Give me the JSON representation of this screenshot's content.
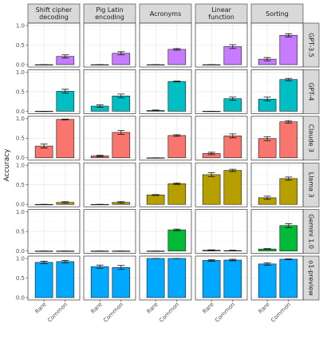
{
  "chart_data": {
    "type": "bar",
    "layout": "facet-grid",
    "ylabel": "Accuracy",
    "ylim": [
      0,
      1
    ],
    "yticks": [
      "0.0",
      "0.5",
      "1.0"
    ],
    "categories": [
      "Rare",
      "Common"
    ],
    "tasks": [
      "Shift cipher\ndecoding",
      "Pig Latin\nencoding",
      "Acronyms",
      "Linear\nfunction",
      "Sorting"
    ],
    "models": [
      {
        "name": "GPT-3.5",
        "color": "#c77cff"
      },
      {
        "name": "GPT-4",
        "color": "#00bfc4"
      },
      {
        "name": "Claude 3",
        "color": "#f8766d"
      },
      {
        "name": "Llama 3",
        "color": "#b79f00"
      },
      {
        "name": "Gemini 1.0",
        "color": "#00ba38"
      },
      {
        "name": "o1-preview",
        "color": "#00a9ff"
      }
    ],
    "values": [
      [
        [
          0.0,
          0.21
        ],
        [
          0.0,
          0.29
        ],
        [
          0.0,
          0.39
        ],
        [
          0.0,
          0.46
        ],
        [
          0.14,
          0.75
        ]
      ],
      [
        [
          0.0,
          0.51
        ],
        [
          0.13,
          0.39
        ],
        [
          0.02,
          0.76
        ],
        [
          0.0,
          0.32
        ],
        [
          0.31,
          0.81
        ]
      ],
      [
        [
          0.3,
          0.98
        ],
        [
          0.05,
          0.65
        ],
        [
          0.0,
          0.57
        ],
        [
          0.11,
          0.56
        ],
        [
          0.49,
          0.92
        ]
      ],
      [
        [
          0.0,
          0.05
        ],
        [
          0.0,
          0.05
        ],
        [
          0.24,
          0.53
        ],
        [
          0.76,
          0.87
        ],
        [
          0.17,
          0.66
        ]
      ],
      [
        [
          0.0,
          0.0
        ],
        [
          0.0,
          0.0
        ],
        [
          0.0,
          0.54
        ],
        [
          0.02,
          0.01
        ],
        [
          0.05,
          0.65
        ]
      ],
      [
        [
          0.9,
          0.92
        ],
        [
          0.79,
          0.77
        ],
        [
          1.0,
          1.0
        ],
        [
          0.95,
          0.96
        ],
        [
          0.86,
          0.98
        ]
      ]
    ],
    "errors": [
      [
        [
          0.0,
          0.04
        ],
        [
          0.0,
          0.04
        ],
        [
          0.0,
          0.02
        ],
        [
          0.0,
          0.05
        ],
        [
          0.04,
          0.04
        ]
      ],
      [
        [
          0.0,
          0.05
        ],
        [
          0.03,
          0.05
        ],
        [
          0.01,
          0.01
        ],
        [
          0.0,
          0.04
        ],
        [
          0.05,
          0.03
        ]
      ],
      [
        [
          0.05,
          0.01
        ],
        [
          0.02,
          0.05
        ],
        [
          0.0,
          0.02
        ],
        [
          0.03,
          0.05
        ],
        [
          0.05,
          0.03
        ]
      ],
      [
        [
          0.0,
          0.02
        ],
        [
          0.0,
          0.02
        ],
        [
          0.01,
          0.02
        ],
        [
          0.05,
          0.03
        ],
        [
          0.04,
          0.04
        ]
      ],
      [
        [
          0.0,
          0.0
        ],
        [
          0.0,
          0.0
        ],
        [
          0.0,
          0.02
        ],
        [
          0.01,
          0.01
        ],
        [
          0.01,
          0.05
        ]
      ],
      [
        [
          0.03,
          0.03
        ],
        [
          0.04,
          0.05
        ],
        [
          0.0,
          0.0
        ],
        [
          0.02,
          0.02
        ],
        [
          0.03,
          0.01
        ]
      ]
    ]
  }
}
